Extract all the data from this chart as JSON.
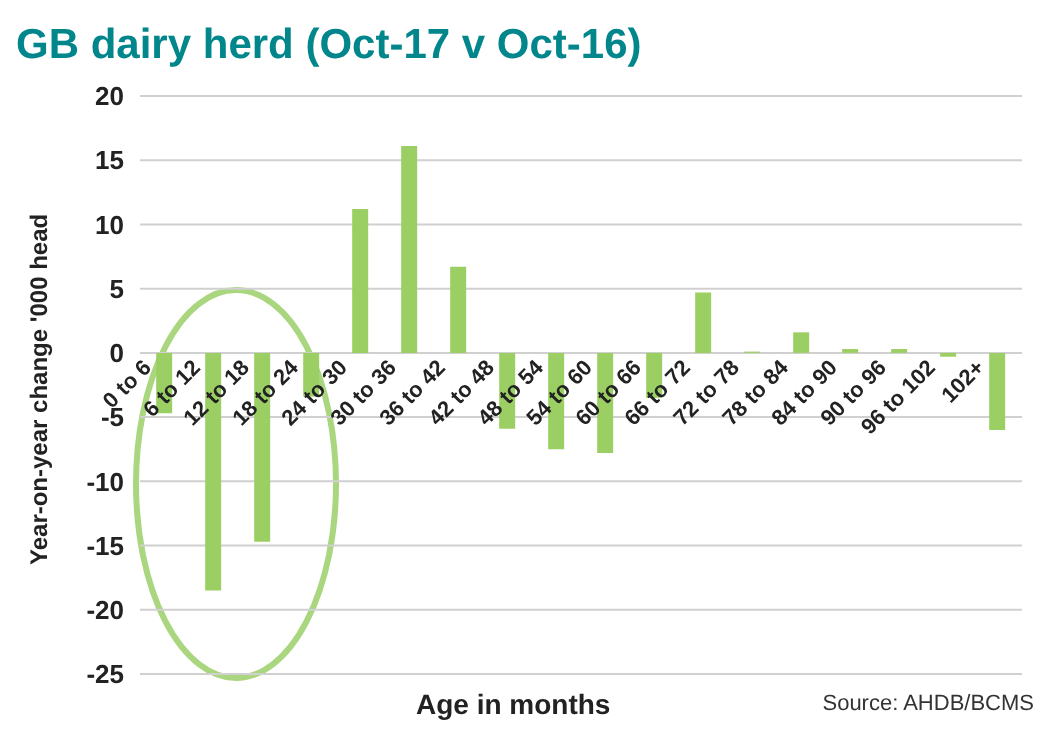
{
  "chart_data": {
    "type": "bar",
    "title": "GB dairy herd (Oct-17 v Oct-16)",
    "xlabel": "Age in months",
    "ylabel": "Year-on-year change '000 head",
    "categories": [
      "0 to 6",
      "6 to 12",
      "12 to 18",
      "18 to 24",
      "24 to 30",
      "30 to 36",
      "36 to 42",
      "42 to 48",
      "48 to 54",
      "54 to 60",
      "60 to 66",
      "66 to 72",
      "72 to 78",
      "78 to 84",
      "84 to 90",
      "90 to 96",
      "96 to 102",
      "102+"
    ],
    "values": [
      -4.7,
      -18.5,
      -14.7,
      -3.4,
      11.2,
      16.1,
      6.7,
      -5.9,
      -7.5,
      -7.8,
      -3.5,
      4.7,
      0.1,
      1.6,
      0.3,
      0.3,
      -0.3,
      -6.0
    ],
    "color": "#9bcf63",
    "ylim": [
      -25,
      20
    ],
    "yticks": [
      -25,
      -20,
      -15,
      -10,
      -5,
      0,
      5,
      10,
      15,
      20
    ],
    "grid": "y",
    "annotations": [
      "Source: AHDB/BCMS"
    ]
  }
}
